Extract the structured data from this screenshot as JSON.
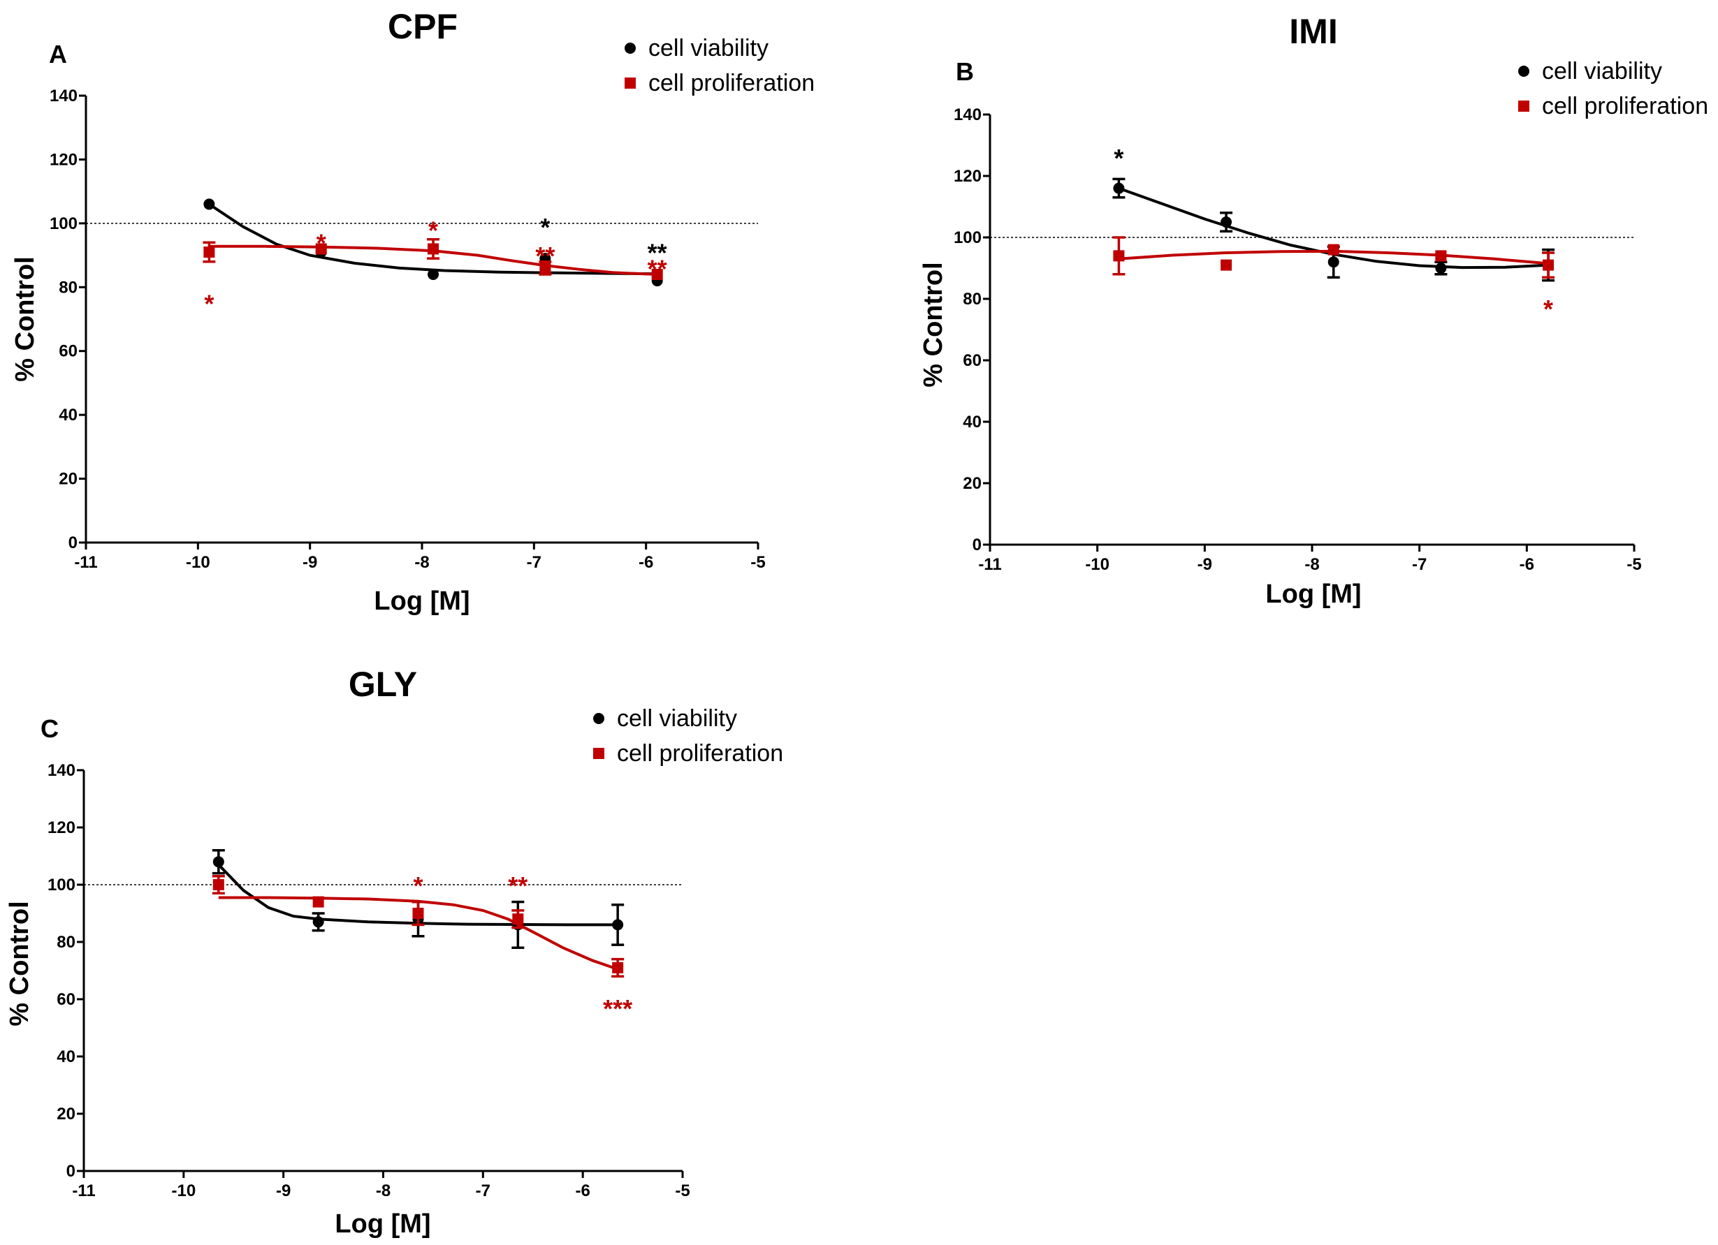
{
  "colors": {
    "viability": "#000000",
    "proliferation": "#c00000",
    "reference": "#000000"
  },
  "chart_data": [
    {
      "type": "line",
      "panel": "A",
      "title": "CPF",
      "xlabel": "Log [M]",
      "ylabel": "% Control",
      "xlim": [
        -11,
        -5
      ],
      "ylim": [
        0,
        140
      ],
      "xticks": [
        -11,
        -10,
        -9,
        -8,
        -7,
        -6,
        -5
      ],
      "yticks": [
        0,
        20,
        40,
        60,
        80,
        100,
        120,
        140
      ],
      "reference_line": 100,
      "legend_position": "top-right",
      "series": [
        {
          "name": "cell viability",
          "marker": "circle",
          "x": [
            -9.9,
            -8.9,
            -7.9,
            -6.9,
            -5.9
          ],
          "y": [
            106,
            91,
            84,
            89,
            82
          ],
          "err": [
            0,
            0,
            0,
            0,
            0
          ],
          "curve": [
            [
              -9.9,
              106
            ],
            [
              -9.6,
              99
            ],
            [
              -9.3,
              93.5
            ],
            [
              -9.0,
              90
            ],
            [
              -8.6,
              87.5
            ],
            [
              -8.2,
              86
            ],
            [
              -7.8,
              85.2
            ],
            [
              -7.3,
              84.7
            ],
            [
              -6.8,
              84.5
            ],
            [
              -6.3,
              84.3
            ],
            [
              -5.9,
              84.2
            ]
          ],
          "stars": [
            {
              "x": -6.9,
              "y": 100,
              "text": "*"
            },
            {
              "x": -5.9,
              "y": 92,
              "text": "**"
            }
          ]
        },
        {
          "name": "cell proliferation",
          "marker": "square",
          "x": [
            -9.9,
            -8.9,
            -7.9,
            -6.9,
            -5.9
          ],
          "y": [
            91,
            92,
            92,
            86,
            84
          ],
          "err": [
            3,
            0,
            3,
            2,
            0
          ],
          "curve": [
            [
              -9.9,
              92.8
            ],
            [
              -9.4,
              92.8
            ],
            [
              -8.9,
              92.6
            ],
            [
              -8.4,
              92.2
            ],
            [
              -7.9,
              91.4
            ],
            [
              -7.5,
              90
            ],
            [
              -7.2,
              88.3
            ],
            [
              -6.9,
              86.8
            ],
            [
              -6.6,
              85.6
            ],
            [
              -6.3,
              84.6
            ],
            [
              -5.9,
              84
            ]
          ],
          "stars": [
            {
              "x": -9.9,
              "y": 76,
              "text": "*"
            },
            {
              "x": -8.9,
              "y": 95,
              "text": "*"
            },
            {
              "x": -7.9,
              "y": 99,
              "text": "*"
            },
            {
              "x": -6.9,
              "y": 91,
              "text": "**"
            },
            {
              "x": -5.9,
              "y": 87,
              "text": "**"
            }
          ]
        }
      ]
    },
    {
      "type": "line",
      "panel": "B",
      "title": "IMI",
      "xlabel": "Log [M]",
      "ylabel": "% Control",
      "xlim": [
        -11,
        -5
      ],
      "ylim": [
        0,
        140
      ],
      "xticks": [
        -11,
        -10,
        -9,
        -8,
        -7,
        -6,
        -5
      ],
      "yticks": [
        0,
        20,
        40,
        60,
        80,
        100,
        120,
        140
      ],
      "reference_line": 100,
      "legend_position": "top-right",
      "series": [
        {
          "name": "cell viability",
          "marker": "circle",
          "x": [
            -9.8,
            -8.8,
            -7.8,
            -6.8,
            -5.8
          ],
          "y": [
            116,
            105,
            92,
            90,
            91
          ],
          "err": [
            3,
            3,
            5,
            2,
            5
          ],
          "curve": [
            [
              -9.8,
              116
            ],
            [
              -9.4,
              111
            ],
            [
              -9.0,
              106
            ],
            [
              -8.6,
              101.5
            ],
            [
              -8.2,
              97.5
            ],
            [
              -7.8,
              94.5
            ],
            [
              -7.4,
              92.2
            ],
            [
              -7.0,
              90.8
            ],
            [
              -6.6,
              90.2
            ],
            [
              -6.2,
              90.3
            ],
            [
              -5.8,
              91
            ]
          ],
          "stars": [
            {
              "x": -9.8,
              "y": 127,
              "text": "*"
            }
          ]
        },
        {
          "name": "cell proliferation",
          "marker": "square",
          "x": [
            -9.8,
            -8.8,
            -7.8,
            -6.8,
            -5.8
          ],
          "y": [
            94,
            91,
            96,
            94,
            91
          ],
          "err": [
            6,
            0,
            0,
            0,
            4
          ],
          "curve": [
            [
              -9.8,
              93
            ],
            [
              -9.3,
              94.2
            ],
            [
              -8.8,
              95
            ],
            [
              -8.3,
              95.4
            ],
            [
              -7.8,
              95.5
            ],
            [
              -7.3,
              95
            ],
            [
              -6.8,
              94.2
            ],
            [
              -6.3,
              93
            ],
            [
              -5.8,
              91.5
            ]
          ],
          "stars": [
            {
              "x": -5.8,
              "y": 78,
              "text": "*"
            }
          ]
        }
      ]
    },
    {
      "type": "line",
      "panel": "C",
      "title": "GLY",
      "xlabel": "Log [M]",
      "ylabel": "% Control",
      "xlim": [
        -11,
        -5
      ],
      "ylim": [
        0,
        140
      ],
      "xticks": [
        -11,
        -10,
        -9,
        -8,
        -7,
        -6,
        -5
      ],
      "yticks": [
        0,
        20,
        40,
        60,
        80,
        100,
        120,
        140
      ],
      "reference_line": 100,
      "legend_position": "top-right",
      "series": [
        {
          "name": "cell viability",
          "marker": "circle",
          "x": [
            -9.65,
            -8.65,
            -7.65,
            -6.65,
            -5.65
          ],
          "y": [
            108,
            87,
            88,
            86,
            86
          ],
          "err": [
            4,
            3,
            6,
            8,
            7
          ],
          "curve": [
            [
              -9.65,
              107
            ],
            [
              -9.4,
              98
            ],
            [
              -9.15,
              92
            ],
            [
              -8.9,
              89
            ],
            [
              -8.65,
              88
            ],
            [
              -8.15,
              87
            ],
            [
              -7.65,
              86.5
            ],
            [
              -7.15,
              86.2
            ],
            [
              -6.65,
              86.1
            ],
            [
              -6.15,
              86
            ],
            [
              -5.65,
              86
            ]
          ],
          "stars": []
        },
        {
          "name": "cell proliferation",
          "marker": "square",
          "x": [
            -9.65,
            -8.65,
            -7.65,
            -6.65,
            -5.65
          ],
          "y": [
            100,
            94,
            90,
            88,
            71
          ],
          "err": [
            3,
            0,
            4,
            3,
            3
          ],
          "curve": [
            [
              -9.65,
              95.5
            ],
            [
              -9.15,
              95.5
            ],
            [
              -8.65,
              95.3
            ],
            [
              -8.15,
              95
            ],
            [
              -7.65,
              94.2
            ],
            [
              -7.3,
              93
            ],
            [
              -7.0,
              91
            ],
            [
              -6.75,
              88
            ],
            [
              -6.5,
              83.5
            ],
            [
              -6.2,
              78
            ],
            [
              -5.9,
              73.5
            ],
            [
              -5.65,
              70.5
            ]
          ],
          "stars": [
            {
              "x": -7.65,
              "y": 101,
              "text": "*"
            },
            {
              "x": -6.65,
              "y": 101,
              "text": "**"
            },
            {
              "x": -5.65,
              "y": 58,
              "text": "***"
            }
          ]
        }
      ]
    }
  ]
}
